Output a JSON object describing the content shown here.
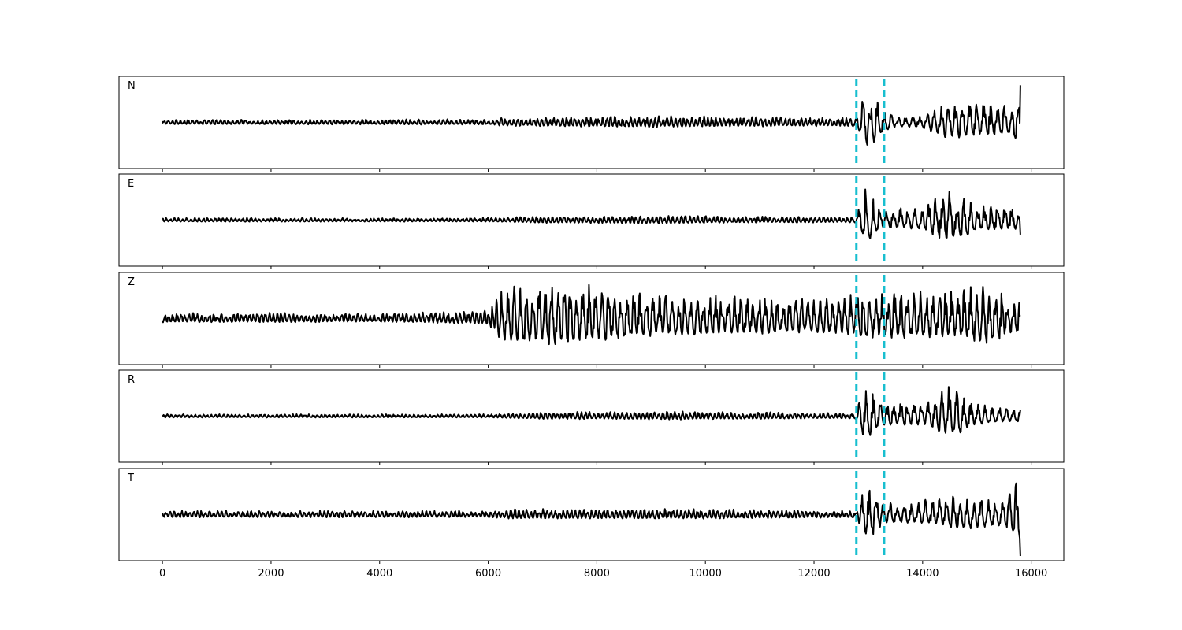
{
  "chart_data": {
    "type": "line",
    "title": "",
    "xlabel": "",
    "ylabel": "",
    "xlim": [
      -800,
      16600
    ],
    "xticks": [
      0,
      2000,
      4000,
      6000,
      8000,
      10000,
      12000,
      14000,
      16000
    ],
    "xtick_labels": [
      "0",
      "2000",
      "4000",
      "6000",
      "8000",
      "10000",
      "12000",
      "14000",
      "16000"
    ],
    "grid": false,
    "legend": "none",
    "x_end": 15800,
    "pick_lines": {
      "color": "#17becf",
      "style": "dashed",
      "x": [
        12780,
        13290
      ]
    },
    "series": [
      {
        "name": "N",
        "color": "#000000",
        "envelope": [
          [
            0,
            0.07
          ],
          [
            6000,
            0.08
          ],
          [
            6200,
            0.12
          ],
          [
            9000,
            0.17
          ],
          [
            12600,
            0.13
          ],
          [
            12780,
            0.14
          ],
          [
            12950,
            0.92
          ],
          [
            13100,
            0.75
          ],
          [
            13290,
            0.35
          ],
          [
            13500,
            0.16
          ],
          [
            14000,
            0.2
          ],
          [
            14450,
            0.62
          ],
          [
            15000,
            0.5
          ],
          [
            15600,
            0.45
          ],
          [
            15800,
            0.85
          ]
        ],
        "end_value": 0.9
      },
      {
        "name": "E",
        "color": "#000000",
        "envelope": [
          [
            0,
            0.06
          ],
          [
            6000,
            0.06
          ],
          [
            7000,
            0.1
          ],
          [
            9000,
            0.12
          ],
          [
            12600,
            0.08
          ],
          [
            12780,
            0.12
          ],
          [
            12950,
            0.85
          ],
          [
            13100,
            0.55
          ],
          [
            13290,
            0.3
          ],
          [
            14000,
            0.35
          ],
          [
            14500,
            0.8
          ],
          [
            15000,
            0.4
          ],
          [
            15700,
            0.35
          ],
          [
            15800,
            0.3
          ]
        ],
        "end_value": -0.35
      },
      {
        "name": "Z",
        "color": "#000000",
        "envelope": [
          [
            0,
            0.14
          ],
          [
            2000,
            0.14
          ],
          [
            4000,
            0.12
          ],
          [
            6000,
            0.2
          ],
          [
            6300,
            0.9
          ],
          [
            7400,
            0.95
          ],
          [
            9000,
            0.65
          ],
          [
            12000,
            0.5
          ],
          [
            12780,
            0.6
          ],
          [
            13000,
            0.85
          ],
          [
            13290,
            0.7
          ],
          [
            14500,
            0.75
          ],
          [
            15200,
            0.9
          ],
          [
            15800,
            0.5
          ]
        ],
        "end_value": 0.08
      },
      {
        "name": "R",
        "color": "#000000",
        "envelope": [
          [
            0,
            0.05
          ],
          [
            6000,
            0.05
          ],
          [
            7000,
            0.1
          ],
          [
            9500,
            0.12
          ],
          [
            12600,
            0.08
          ],
          [
            12780,
            0.1
          ],
          [
            12950,
            0.95
          ],
          [
            13100,
            0.55
          ],
          [
            13290,
            0.35
          ],
          [
            14000,
            0.3
          ],
          [
            14500,
            0.8
          ],
          [
            15000,
            0.3
          ],
          [
            15800,
            0.2
          ]
        ],
        "end_value": 0.15
      },
      {
        "name": "T",
        "color": "#000000",
        "envelope": [
          [
            0,
            0.1
          ],
          [
            6000,
            0.1
          ],
          [
            6400,
            0.15
          ],
          [
            10000,
            0.15
          ],
          [
            12600,
            0.1
          ],
          [
            12780,
            0.12
          ],
          [
            12950,
            0.9
          ],
          [
            13100,
            0.7
          ],
          [
            13290,
            0.3
          ],
          [
            14000,
            0.35
          ],
          [
            14700,
            0.55
          ],
          [
            15500,
            0.4
          ],
          [
            15700,
            0.8
          ],
          [
            15800,
            0.9
          ]
        ],
        "end_value": -1.0
      }
    ]
  }
}
